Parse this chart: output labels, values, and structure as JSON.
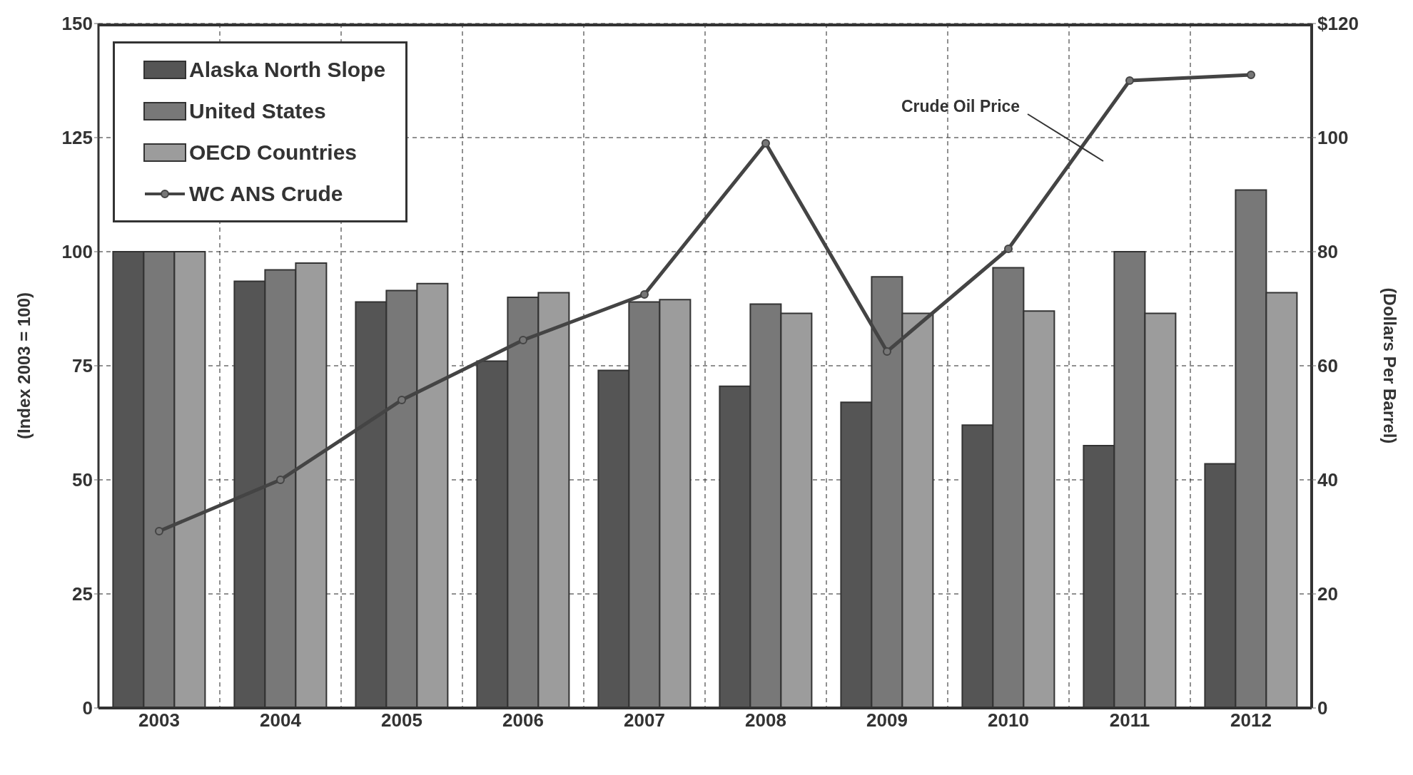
{
  "chart_data": {
    "type": "bar",
    "ylabel": "(Index 2003 = 100)",
    "y2label": "(Dollars Per Barrel)",
    "categories": [
      "2003",
      "2004",
      "2005",
      "2006",
      "2007",
      "2008",
      "2009",
      "2010",
      "2011",
      "2012"
    ],
    "series": [
      {
        "name": "Alaska North Slope",
        "color": "#555555",
        "values": [
          100,
          93.5,
          89,
          76,
          74,
          70.5,
          67,
          62,
          57.5,
          53.5
        ]
      },
      {
        "name": "United States",
        "color": "#787878",
        "values": [
          100,
          96,
          91.5,
          90,
          89,
          88.5,
          94.5,
          96.5,
          100,
          113.5
        ]
      },
      {
        "name": "OECD Countries",
        "color": "#9c9c9c",
        "values": [
          100,
          97.5,
          93,
          91,
          89.5,
          86.5,
          86.5,
          87,
          86.5,
          91
        ]
      },
      {
        "name": "WC ANS Crude",
        "type": "line",
        "axis": "y2",
        "color": "#444444",
        "values": [
          31,
          40,
          54,
          64.5,
          72.5,
          99,
          62.5,
          80.5,
          110,
          111
        ]
      }
    ],
    "ylim": [
      0,
      150
    ],
    "yticks": [
      0,
      25,
      50,
      75,
      100,
      125,
      150
    ],
    "y2lim": [
      0,
      120
    ],
    "y2ticks": [
      0,
      20,
      40,
      60,
      80,
      100,
      {
        "value": 120,
        "label": "$120"
      }
    ],
    "annotations": [
      "Crude Oil Price"
    ],
    "grid": true,
    "legend": "top left",
    "marker": "circle",
    "line_style": "solid"
  }
}
